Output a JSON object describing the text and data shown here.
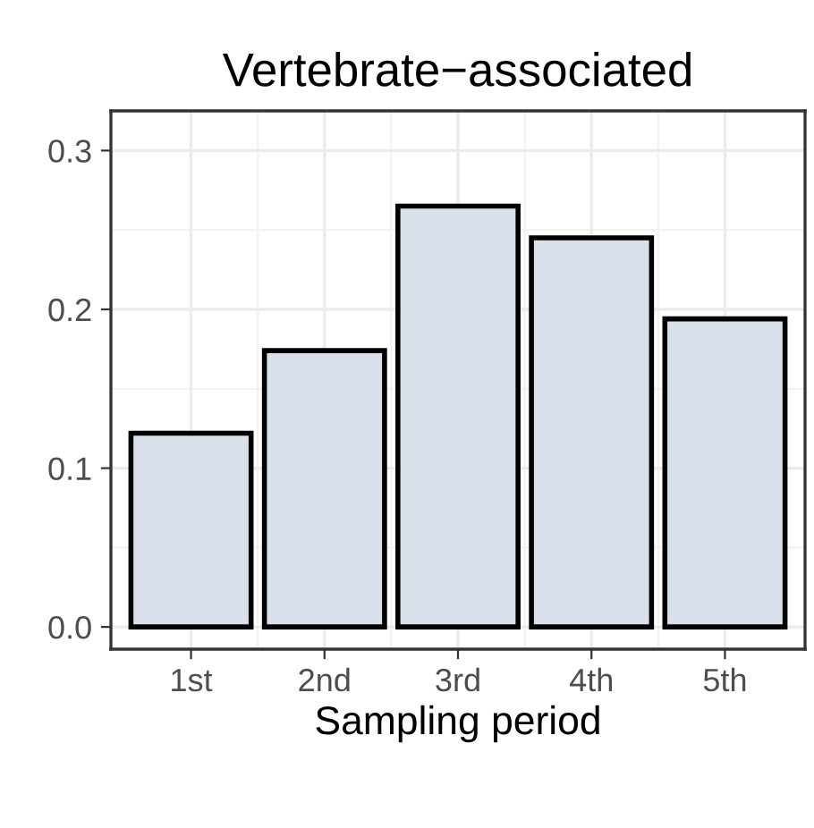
{
  "chart_data": {
    "type": "bar",
    "title": "Vertebrate−associated",
    "xlabel": "Sampling period",
    "categories": [
      "1st",
      "2nd",
      "3rd",
      "4th",
      "5th"
    ],
    "values": [
      0.122,
      0.174,
      0.265,
      0.245,
      0.194
    ],
    "color": "#d9e0ea",
    "ylim": [
      -0.014,
      0.325
    ],
    "yticks": [
      {
        "value": 0.0,
        "label": "0.0"
      },
      0.1,
      0.2,
      0.3
    ],
    "grid": true
  }
}
